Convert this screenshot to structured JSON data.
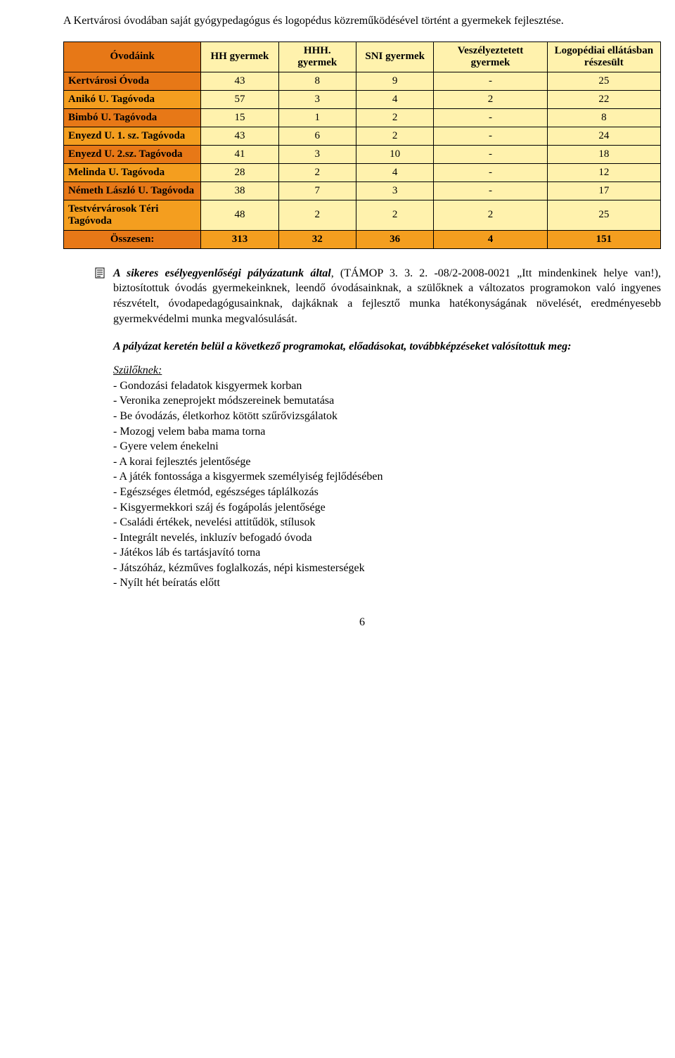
{
  "intro": "A Kertvárosi óvodában saját gyógypedagógus és logopédus közreműködésével történt a gyermekek fejlesztése.",
  "table": {
    "headers": [
      "Óvodáink",
      "HH gyermek",
      "HHH. gyermek",
      "SNI gyermek",
      "Veszélyeztetett gyermek",
      "Logopédiai ellátásban részesült"
    ],
    "header_colors": {
      "label_bg": "#e77817",
      "data_bg": "#fff2ad"
    },
    "row_colors": {
      "label_odd": "#e77817",
      "label_even": "#f49e1f",
      "data_bg": "#fff2ad",
      "total_label_bg": "#e77817",
      "total_data_bg": "#f49e1f"
    },
    "col_widths": [
      "23%",
      "13%",
      "13%",
      "13%",
      "19%",
      "19%"
    ],
    "rows": [
      {
        "label": "Kertvárosi Óvoda",
        "cells": [
          "43",
          "8",
          "9",
          "-",
          "25"
        ]
      },
      {
        "label": "Anikó U. Tagóvoda",
        "cells": [
          "57",
          "3",
          "4",
          "2",
          "22"
        ]
      },
      {
        "label": "Bimbó U. Tagóvoda",
        "cells": [
          "15",
          "1",
          "2",
          "-",
          "8"
        ]
      },
      {
        "label": "Enyezd  U. 1. sz. Tagóvoda",
        "cells": [
          "43",
          "6",
          "2",
          "-",
          "24"
        ]
      },
      {
        "label": "Enyezd U. 2.sz. Tagóvoda",
        "cells": [
          "41",
          "3",
          "10",
          "-",
          "18"
        ]
      },
      {
        "label": "Melinda U. Tagóvoda",
        "cells": [
          "28",
          "2",
          "4",
          "-",
          "12"
        ]
      },
      {
        "label": "Németh László U. Tagóvoda",
        "cells": [
          "38",
          "7",
          "3",
          "-",
          "17"
        ]
      },
      {
        "label": "Testvérvárosok Téri Tagóvoda",
        "cells": [
          "48",
          "2",
          "2",
          "2",
          "25"
        ]
      }
    ],
    "total": {
      "label": "Összesen:",
      "cells": [
        "313",
        "32",
        "36",
        "4",
        "151"
      ]
    }
  },
  "bullet": {
    "icon": "document-icon",
    "lead": "A sikeres esélyegyenlőségi pályázatunk által",
    "body": ", (TÁMOP 3. 3. 2. -08/2-2008-0021 „Itt mindenkinek helye van!), biztosítottuk óvodás gyermekeinknek, leendő óvodásainknak, a szülőknek a változatos programokon való ingyenes részvételt, óvodapedagógusainknak, dajkáknak a fejlesztő munka hatékonyságának növelését, eredményesebb gyermekvédelmi munka megvalósulását."
  },
  "programs_intro": "A pályázat keretén belül a következő programokat, előadásokat, továbbképzéseket valósítottuk meg:",
  "list": {
    "heading": "Szülőknek:",
    "items": [
      "- Gondozási feladatok kisgyermek korban",
      "- Veronika zeneprojekt módszereinek bemutatása",
      "- Be óvodázás, életkorhoz kötött szűrővizsgálatok",
      "- Mozogj velem baba mama torna",
      "- Gyere velem énekelni",
      "- A korai fejlesztés jelentősége",
      "- A játék fontossága a kisgyermek személyiség fejlődésében",
      "- Egészséges életmód, egészséges táplálkozás",
      "- Kisgyermekkori száj és fogápolás jelentősége",
      "- Családi értékek, nevelési attitűdök, stílusok",
      "- Integrált nevelés, inkluzív befogadó óvoda",
      "- Játékos láb és tartásjavító torna",
      "- Játszóház, kézműves foglalkozás, népi kismesterségek",
      "- Nyílt hét beíratás előtt"
    ]
  },
  "page_number": "6"
}
